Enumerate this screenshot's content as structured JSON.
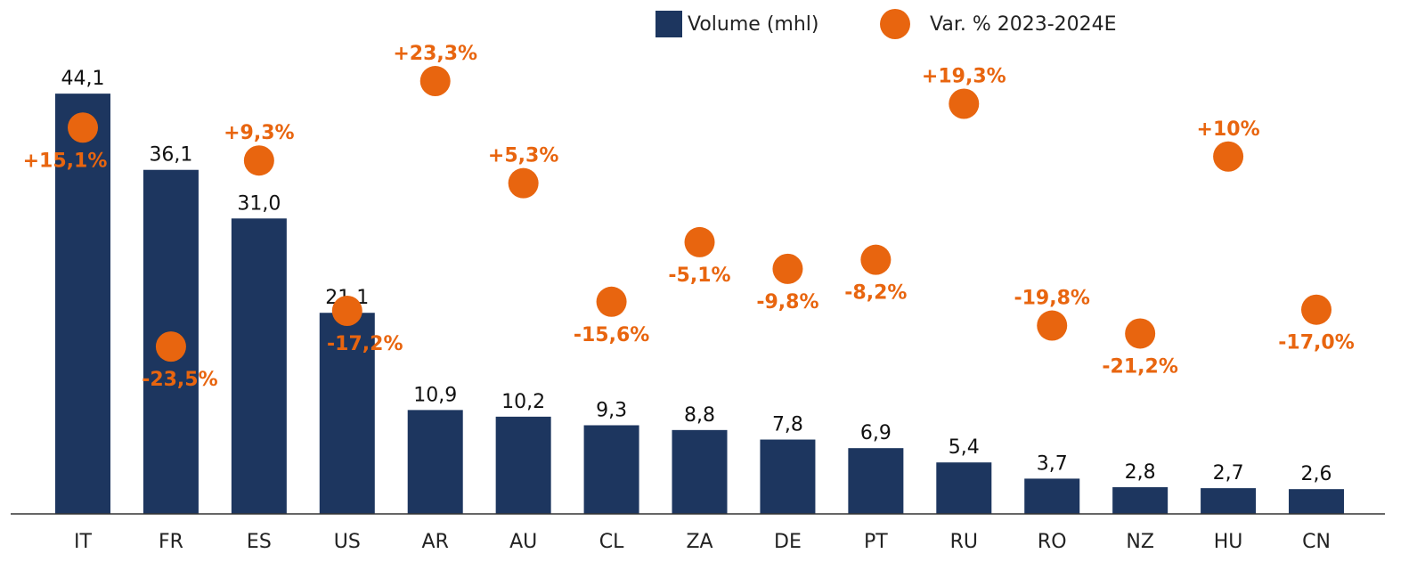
{
  "chart_data": {
    "type": "bar",
    "categories": [
      "IT",
      "FR",
      "ES",
      "US",
      "AR",
      "AU",
      "CL",
      "ZA",
      "DE",
      "PT",
      "RU",
      "RO",
      "NZ",
      "HU",
      "CN"
    ],
    "series": [
      {
        "name": "Volume (mhl)",
        "color": "#1d365f",
        "values": [
          44.1,
          36.1,
          31.0,
          21.1,
          10.9,
          10.2,
          9.3,
          8.8,
          7.8,
          6.9,
          5.4,
          3.7,
          2.8,
          2.7,
          2.6
        ],
        "value_labels": [
          "44,1",
          "36,1",
          "31,0",
          "21,1",
          "10,9",
          "10,2",
          "9,3",
          "8,8",
          "7,8",
          "6,9",
          "5,4",
          "3,7",
          "2,8",
          "2,7",
          "2,6"
        ]
      },
      {
        "name": "Var. % 2023-2024E",
        "type": "scatter",
        "axis": "y2",
        "color": "#e8650f",
        "values": [
          15.1,
          -23.5,
          9.3,
          -17.2,
          23.3,
          5.3,
          -15.6,
          -5.1,
          -9.8,
          -8.2,
          19.3,
          -19.8,
          -21.2,
          10,
          -17.0
        ],
        "value_labels": [
          "+15,1%",
          "-23,5%",
          "+9,3%",
          "-17,2%",
          "+23,3%",
          "+5,3%",
          "-15,6%",
          "-5,1%",
          "-9,8%",
          "-8,2%",
          "+19,3%",
          "-19,8%",
          "-21,2%",
          "+10%",
          "-17,0%"
        ]
      }
    ],
    "ylim": [
      0,
      50
    ],
    "y2lim": [
      -53,
      31
    ],
    "legend": "top"
  }
}
